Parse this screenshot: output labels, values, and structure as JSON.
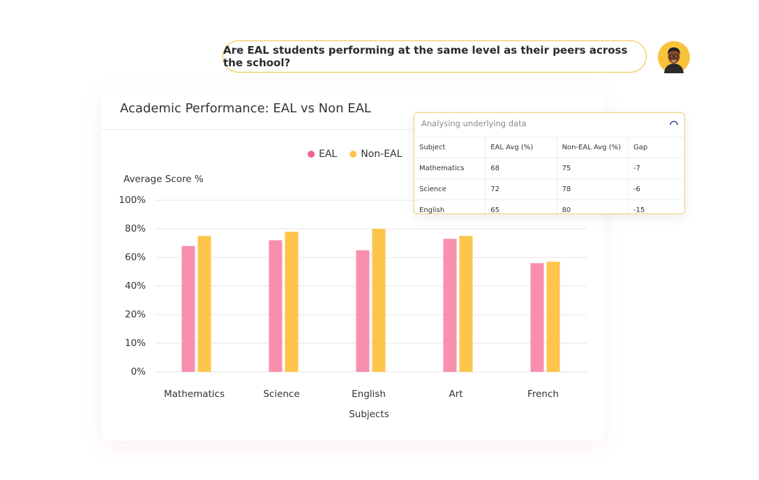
{
  "chat": {
    "question": "Are EAL students performing at the same level as their peers across the school?"
  },
  "chart_data": {
    "type": "bar",
    "title": "Academic Performance: EAL vs Non EAL",
    "ylabel": "Average Score %",
    "xlabel": "Subjects",
    "categories": [
      "Mathematics",
      "Science",
      "English",
      "Art",
      "French"
    ],
    "series": [
      {
        "name": "EAL",
        "color": "#f88fad",
        "values": [
          68,
          72,
          65,
          73,
          56
        ]
      },
      {
        "name": "Non-EAL",
        "color": "#fdc64b",
        "values": [
          75,
          78,
          80,
          75,
          57
        ]
      }
    ],
    "ylim": [
      0,
      100
    ],
    "yticks": [
      {
        "value": 0,
        "label": "0%"
      },
      {
        "value": 10,
        "label": "10%"
      },
      {
        "value": 20,
        "label": "20%"
      },
      {
        "value": 40,
        "label": "40%"
      },
      {
        "value": 60,
        "label": "60%"
      },
      {
        "value": 80,
        "label": "80%"
      },
      {
        "value": 100,
        "label": "100%"
      }
    ],
    "grid": true,
    "legend": "top"
  },
  "data_panel": {
    "title": "Analysing underlying data",
    "columns": [
      "Subject",
      "EAL Avg (%)",
      "Non-EAL Avg (%)",
      "Gap"
    ],
    "rows": [
      [
        "Mathematics",
        68,
        75,
        -7
      ],
      [
        "Science",
        72,
        78,
        -6
      ],
      [
        "English",
        65,
        80,
        -15
      ]
    ]
  }
}
